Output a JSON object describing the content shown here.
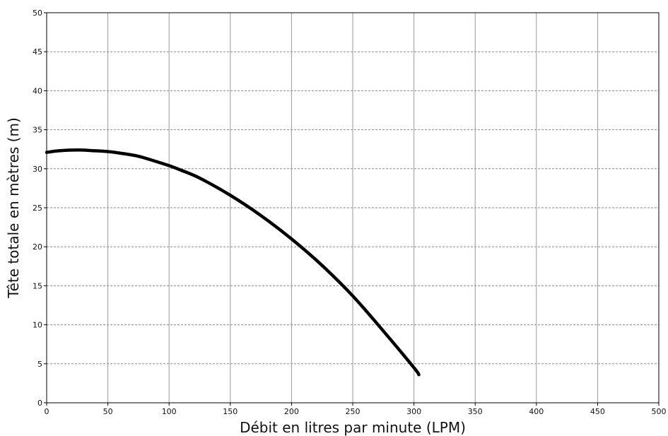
{
  "chart_data": {
    "type": "line",
    "title": "",
    "xlabel": "Débit en litres par minute (LPM)",
    "ylabel": "Tête totale en mètres (m)",
    "xlim": [
      0,
      500
    ],
    "ylim": [
      0,
      50
    ],
    "xticks": [
      0,
      50,
      100,
      150,
      200,
      250,
      300,
      350,
      400,
      450,
      500
    ],
    "yticks": [
      0,
      5,
      10,
      15,
      20,
      25,
      30,
      35,
      40,
      45,
      50
    ],
    "grid": {
      "x": "solid",
      "y": "dashed"
    },
    "line_color": "#000000",
    "series": [
      {
        "x": [
          0,
          10,
          25,
          40,
          50,
          60,
          75,
          90,
          100,
          110,
          125,
          150,
          175,
          200,
          225,
          250,
          275,
          300,
          304
        ],
        "y": [
          32.1,
          32.3,
          32.4,
          32.3,
          32.2,
          32.0,
          31.6,
          30.9,
          30.4,
          29.8,
          28.8,
          26.6,
          24.0,
          21.0,
          17.6,
          13.7,
          9.2,
          4.5,
          3.6
        ]
      }
    ]
  }
}
